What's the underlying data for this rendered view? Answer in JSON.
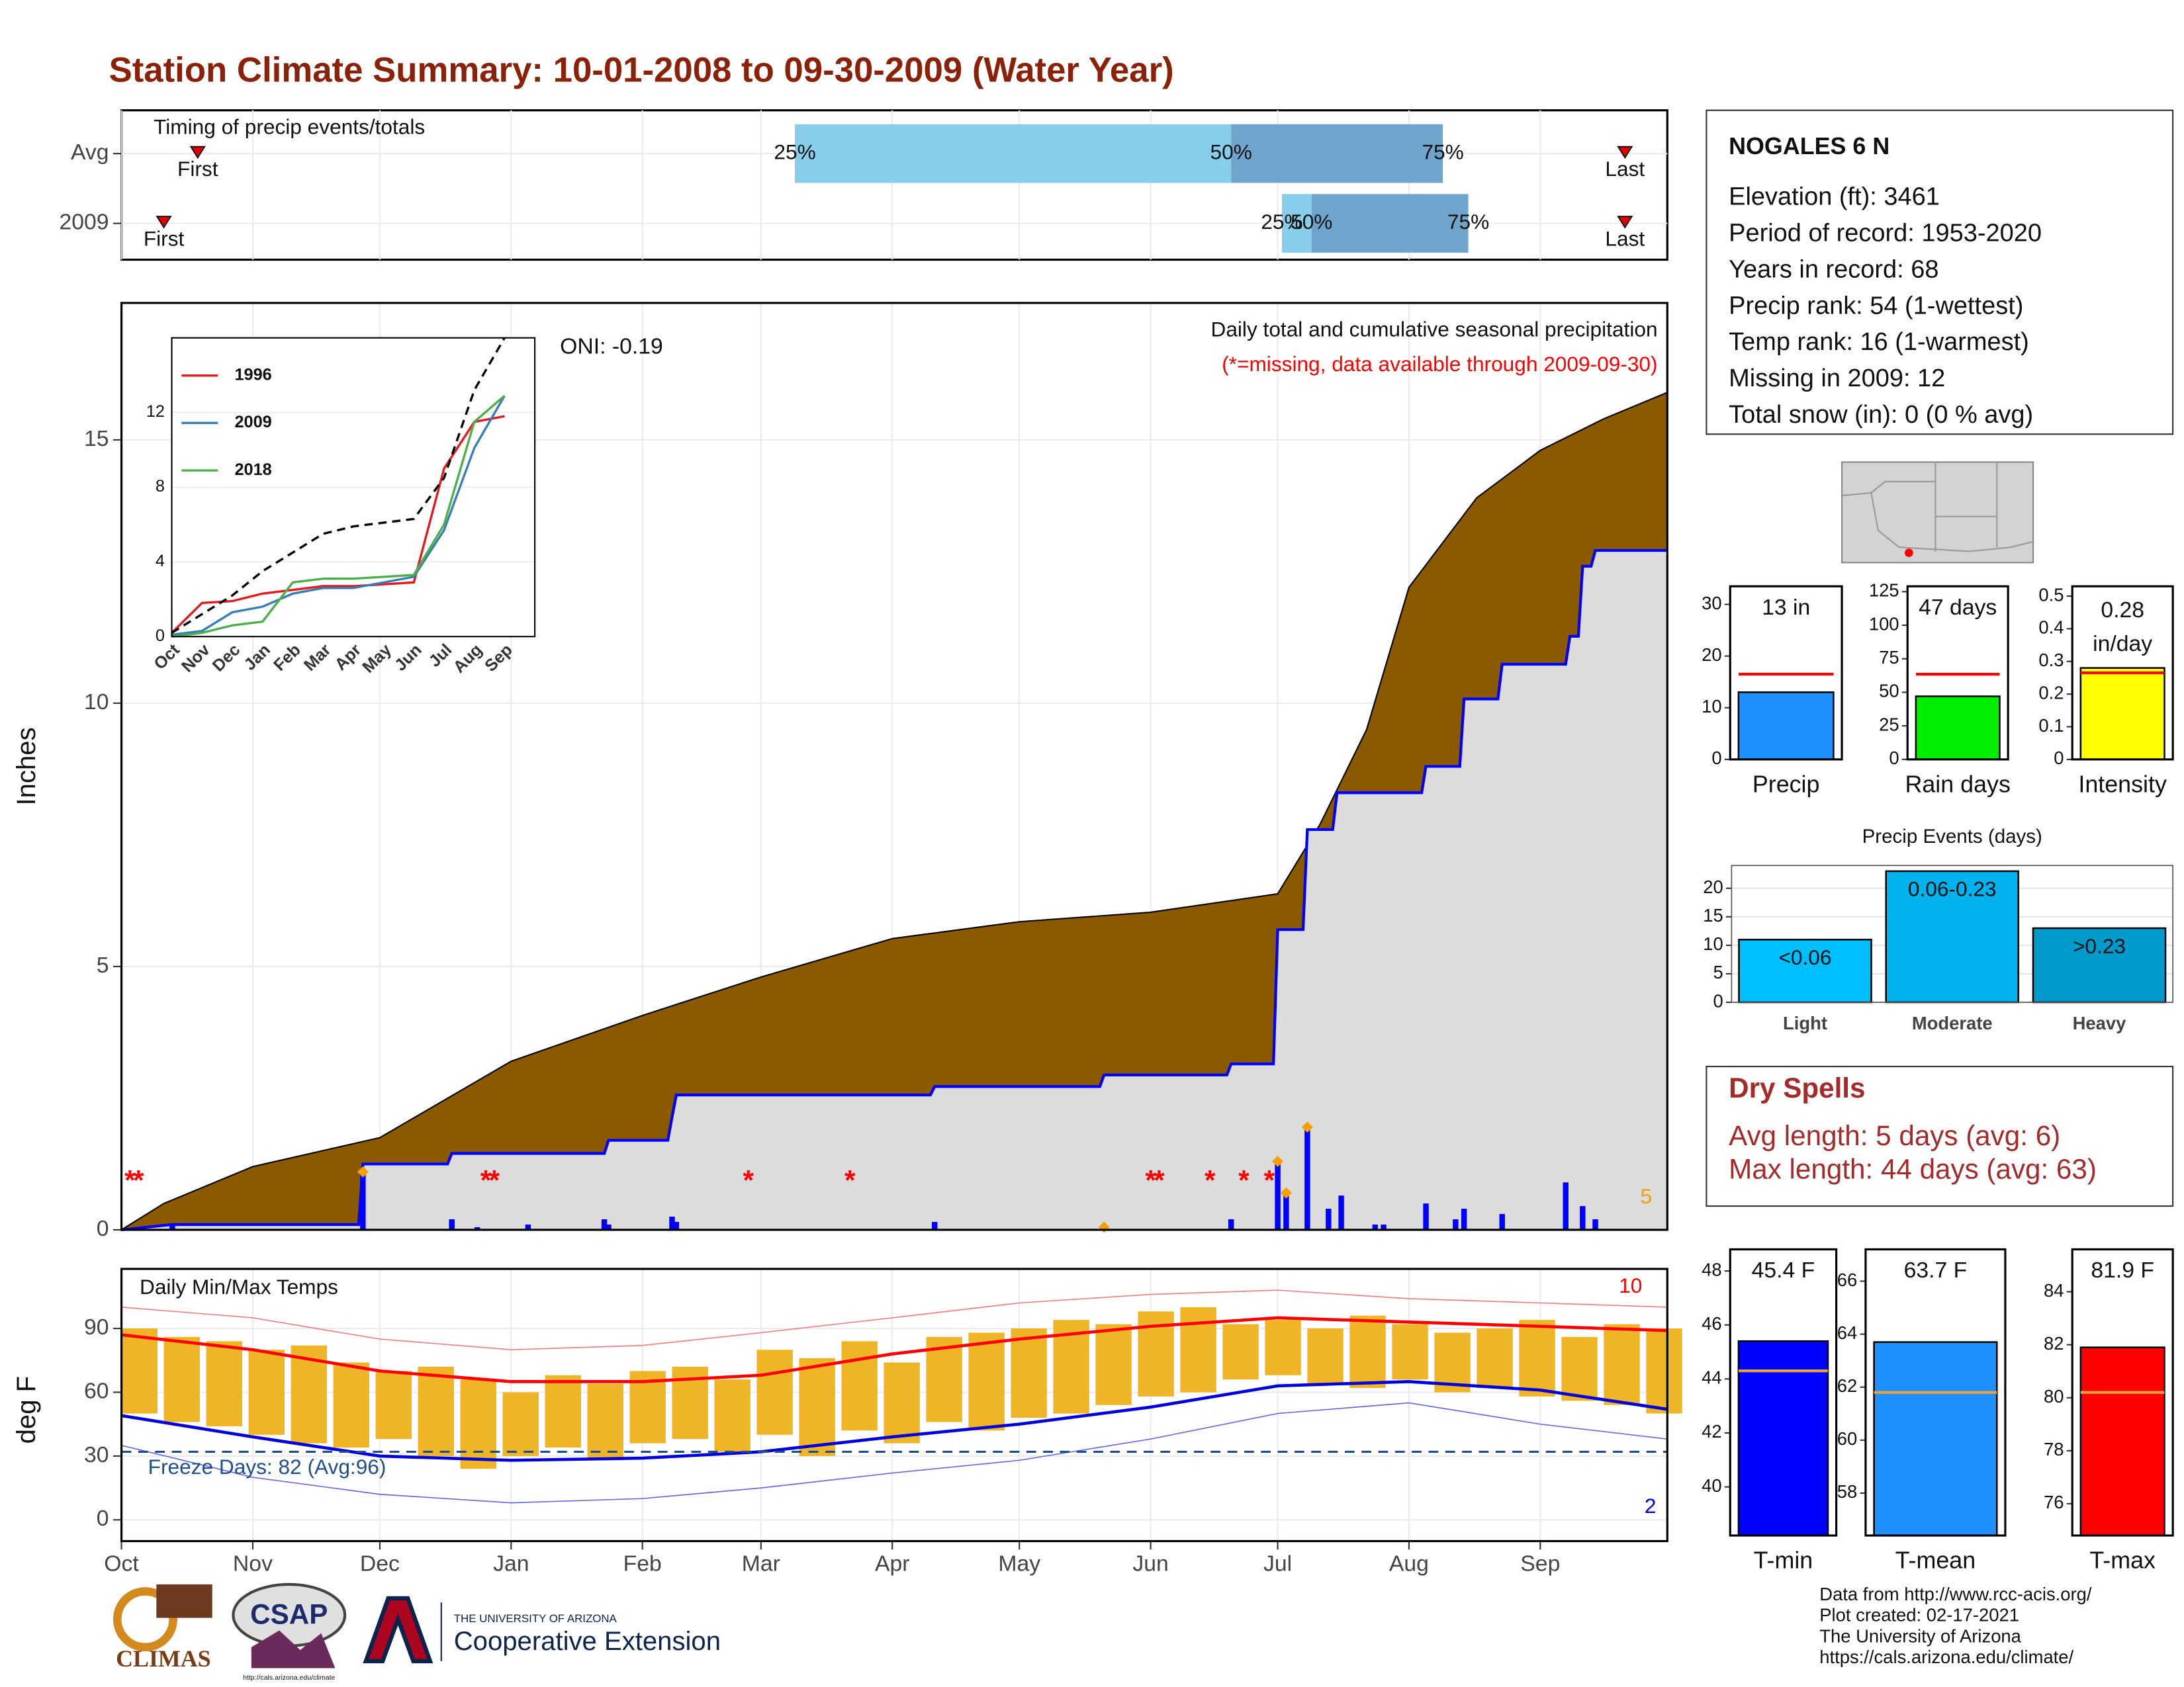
{
  "title": "Station Climate Summary: 10-01-2008 to 09-30-2009 (Water Year)",
  "station": {
    "name": "NOGALES 6 N",
    "lines": [
      "Elevation (ft): 3461",
      "Period of record: 1953-2020",
      "Years in record: 68",
      "Precip rank: 54 (1-wettest)",
      "Temp rank: 16 (1-warmest)",
      "Missing in 2009: 12",
      "Total snow (in): 0 (0 % avg)"
    ]
  },
  "dry_spells": {
    "title": "Dry Spells",
    "lines": [
      "Avg length: 5 days (avg: 6)",
      "Max length: 44 days (avg: 63)"
    ]
  },
  "footer": {
    "lines": [
      "Data from http://www.rcc-acis.org/",
      "Plot created: 02-17-2021",
      "The University of Arizona",
      "https://cals.arizona.edu/climate/"
    ]
  },
  "logos": {
    "climas": "CLIMAS",
    "csap": "CSAP",
    "csap_url": "http://cals.arizona.edu/climate",
    "university": "THE UNIVERSITY OF ARIZONA",
    "extension": "Cooperative Extension"
  },
  "chart_data": [
    {
      "type": "range_bar",
      "title": "Timing of precip events/totals",
      "categories": [
        "Avg",
        "2009"
      ],
      "xlim": [
        0,
        365
      ],
      "q25": [
        159,
        274
      ],
      "q50": [
        262,
        281
      ],
      "q75": [
        312,
        318
      ],
      "first": [
        18,
        10
      ],
      "last": [
        355,
        355
      ],
      "quantile_labels": [
        "25%",
        "50%",
        "75%"
      ],
      "first_label": "First",
      "last_label": "Last",
      "colors": [
        "#87ceeb",
        "#6fa5cc"
      ],
      "marker_color": "#e00000"
    },
    {
      "type": "step_area",
      "title": "Daily total and cumulative seasonal precipitation",
      "subtitle": "(*=missing, data available through 2009-09-30)",
      "annotation": "ONI: -0.19",
      "ylabel": "Inches",
      "xlim": [
        0,
        365
      ],
      "ylim": [
        0,
        17.6
      ],
      "yticks": [
        0,
        5,
        10,
        15
      ],
      "grid": true,
      "average": {
        "x": [
          0,
          10,
          31,
          61,
          92,
          123,
          151,
          182,
          212,
          243,
          273,
          283,
          294,
          304,
          320,
          335,
          350,
          365
        ],
        "values": [
          0,
          0.5,
          1.2,
          1.75,
          3.2,
          4.07,
          4.8,
          5.53,
          5.85,
          6.03,
          6.38,
          7.7,
          9.5,
          12.2,
          13.9,
          14.8,
          15.4,
          15.9
        ]
      },
      "cumulative": {
        "x": [
          0,
          12,
          56,
          57,
          77,
          78,
          114,
          115,
          129,
          130,
          131,
          191,
          192,
          231,
          232,
          261,
          262,
          272,
          273,
          279,
          280,
          286,
          287,
          307,
          308,
          316,
          317,
          325,
          326,
          341,
          342,
          344,
          345,
          347,
          348,
          365
        ],
        "values": [
          0,
          0.1,
          0.1,
          1.25,
          1.25,
          1.45,
          1.45,
          1.7,
          1.7,
          2.14,
          2.56,
          2.56,
          2.72,
          2.72,
          2.94,
          2.94,
          3.15,
          3.15,
          5.7,
          5.7,
          7.6,
          7.6,
          8.3,
          8.3,
          8.8,
          8.8,
          10.08,
          10.08,
          10.74,
          10.74,
          11.27,
          11.27,
          12.6,
          12.6,
          12.9,
          12.9
        ]
      },
      "daily": {
        "x": [
          12,
          57,
          78,
          84,
          96,
          114,
          115,
          130,
          131,
          192,
          232,
          262,
          273,
          275,
          280,
          285,
          288,
          296,
          298,
          308,
          315,
          317,
          326,
          341,
          345,
          348
        ],
        "values": [
          0.1,
          1.1,
          0.2,
          0.05,
          0.1,
          0.2,
          0.1,
          0.25,
          0.15,
          0.15,
          0.05,
          0.2,
          1.3,
          0.7,
          1.95,
          0.4,
          0.65,
          0.1,
          0.1,
          0.5,
          0.2,
          0.4,
          0.3,
          0.9,
          0.45,
          0.2
        ]
      },
      "record_x": [
        57,
        232,
        273,
        275,
        280
      ],
      "record_values": [
        1.1,
        0.05,
        1.3,
        0.7,
        1.95
      ],
      "record_count": 5,
      "missing_marker": "*",
      "missing_x": [
        2,
        4,
        86,
        88,
        148,
        172,
        243,
        245,
        257,
        265,
        271
      ],
      "average_color": "#8b5a00",
      "cumulative_color": "#0000ff",
      "fill_color": "#dcdcdc",
      "record_color": "#f5a000",
      "missing_color": "#ff0000"
    },
    {
      "type": "line",
      "categories": [
        "Oct",
        "Nov",
        "Dec",
        "Jan",
        "Feb",
        "Mar",
        "Apr",
        "May",
        "Jun",
        "Jul",
        "Aug",
        "Sep"
      ],
      "ylim": [
        0,
        16
      ],
      "yticks": [
        0,
        4,
        8,
        12
      ],
      "series": [
        {
          "name": "1996",
          "color": "#e41a1c",
          "values": [
            0.2,
            1.8,
            1.9,
            2.3,
            2.5,
            2.7,
            2.7,
            2.8,
            2.9,
            9.0,
            11.5,
            11.8
          ]
        },
        {
          "name": "2009",
          "color": "#377eb8",
          "values": [
            0.1,
            0.3,
            1.3,
            1.6,
            2.3,
            2.6,
            2.6,
            2.9,
            3.2,
            5.7,
            10.1,
            12.9
          ]
        },
        {
          "name": "2018",
          "color": "#4daf4a",
          "values": [
            0,
            0.2,
            0.6,
            0.8,
            2.9,
            3.1,
            3.1,
            3.2,
            3.3,
            6.0,
            11.5,
            12.9
          ]
        },
        {
          "color": "#000000",
          "dash": true,
          "values": [
            0.2,
            1.2,
            2.2,
            3.5,
            4.5,
            5.5,
            5.9,
            6.1,
            6.3,
            8.5,
            13.2,
            16.0
          ]
        }
      ]
    },
    {
      "type": "range_bar_line",
      "title": "Daily Min/Max Temps",
      "ylabel": "deg F",
      "freeze_label": "Freeze Days: 82 (Avg:96)",
      "high_count": 10,
      "low_count": 2,
      "xlim": [
        0,
        365
      ],
      "ylim": [
        -10,
        118
      ],
      "yticks": [
        0,
        30,
        60,
        90
      ],
      "xticks": [
        {
          "value": 0,
          "label": "Oct"
        },
        {
          "value": 31,
          "label": "Nov"
        },
        {
          "value": 61,
          "label": "Dec"
        },
        {
          "value": 92,
          "label": "Jan"
        },
        {
          "value": 123,
          "label": "Feb"
        },
        {
          "value": 151,
          "label": "Mar"
        },
        {
          "value": 182,
          "label": "Apr"
        },
        {
          "value": 212,
          "label": "May"
        },
        {
          "value": 243,
          "label": "Jun"
        },
        {
          "value": 273,
          "label": "Jul"
        },
        {
          "value": 304,
          "label": "Aug"
        },
        {
          "value": 335,
          "label": "Sep"
        }
      ],
      "x": [
        0,
        10,
        20,
        30,
        40,
        50,
        60,
        70,
        80,
        90,
        100,
        110,
        120,
        130,
        140,
        150,
        160,
        170,
        180,
        190,
        200,
        210,
        220,
        230,
        240,
        250,
        260,
        270,
        280,
        290,
        300,
        310,
        320,
        330,
        340,
        350,
        360
      ],
      "tmax": [
        90,
        86,
        84,
        80,
        82,
        74,
        70,
        72,
        66,
        60,
        68,
        64,
        70,
        72,
        66,
        80,
        76,
        84,
        74,
        86,
        88,
        90,
        94,
        92,
        98,
        100,
        92,
        94,
        90,
        96,
        92,
        88,
        90,
        94,
        86,
        92,
        90
      ],
      "tmin": [
        50,
        46,
        44,
        40,
        36,
        34,
        38,
        30,
        24,
        30,
        34,
        28,
        36,
        38,
        32,
        40,
        30,
        42,
        36,
        46,
        42,
        48,
        50,
        54,
        58,
        60,
        66,
        68,
        64,
        62,
        66,
        60,
        62,
        58,
        56,
        54,
        50
      ],
      "line_x": [
        0,
        31,
        61,
        92,
        123,
        151,
        182,
        212,
        243,
        273,
        304,
        335,
        365
      ],
      "avg_max": [
        87,
        80,
        70,
        65,
        65,
        68,
        78,
        85,
        91,
        95,
        93,
        91,
        89
      ],
      "avg_min": [
        49,
        39,
        30,
        28,
        29,
        32,
        39,
        45,
        53,
        63,
        65,
        61,
        52
      ],
      "record_max": [
        100,
        95,
        85,
        80,
        82,
        88,
        95,
        102,
        106,
        108,
        104,
        102,
        100
      ],
      "record_min": [
        35,
        20,
        12,
        8,
        10,
        15,
        22,
        28,
        38,
        50,
        55,
        45,
        38
      ],
      "freeze": 32,
      "bar_color": "#efb526",
      "max_color": "#ff0000",
      "min_color": "#0000dd",
      "record_max_color": "#f08080",
      "record_min_color": "#6a6ae6",
      "freeze_color": "#1f4e8c"
    },
    {
      "type": "bar",
      "categories": [
        "Precip"
      ],
      "values": [
        13
      ],
      "value_labels": [
        "13 in"
      ],
      "avg": 16.5,
      "ylim": [
        0,
        33.5
      ],
      "yticks": [
        0,
        10,
        20,
        30
      ],
      "color": "#1e90ff",
      "avg_color": "#ff0000"
    },
    {
      "type": "bar",
      "categories": [
        "Rain days"
      ],
      "values": [
        47
      ],
      "value_labels": [
        "47 days"
      ],
      "avg": 63.5,
      "ylim": [
        0,
        129
      ],
      "yticks": [
        0,
        25,
        50,
        75,
        100,
        125
      ],
      "color": "#00ee00",
      "avg_color": "#ff0000"
    },
    {
      "type": "bar",
      "categories": [
        "Intensity"
      ],
      "values": [
        0.28
      ],
      "value_labels": [
        "0.28 in/day"
      ],
      "avg": 0.265,
      "ylim": [
        0,
        0.53
      ],
      "yticks": [
        0.0,
        0.1,
        0.2,
        0.3,
        0.4,
        0.5
      ],
      "color": "#ffff00",
      "avg_color": "#ff0000"
    },
    {
      "type": "bar",
      "title": "Precip Events (days)",
      "categories": [
        "Light",
        "Moderate",
        "Heavy"
      ],
      "values": [
        11,
        23,
        13
      ],
      "bar_labels": [
        "<0.06",
        "0.06-0.23",
        ">0.23"
      ],
      "ylim": [
        0,
        24
      ],
      "yticks": [
        0,
        5,
        10,
        15,
        20
      ],
      "colors": [
        "#00bfff",
        "#00b2ee",
        "#009acd"
      ],
      "grid": true
    },
    {
      "type": "bar",
      "categories": [
        "T-min"
      ],
      "values": [
        45.4
      ],
      "value_labels": [
        "45.4 F"
      ],
      "avg": 44.3,
      "ylim": [
        38.2,
        48.8
      ],
      "yticks": [
        40,
        42,
        44,
        46,
        48
      ],
      "color": "#0000ff",
      "avg_color": "#e6a23c"
    },
    {
      "type": "bar",
      "categories": [
        "T-mean"
      ],
      "values": [
        63.7
      ],
      "value_labels": [
        "63.7 F"
      ],
      "avg": 61.8,
      "ylim": [
        56.4,
        67.2
      ],
      "yticks": [
        58,
        60,
        62,
        64,
        66
      ],
      "color": "#1e90ff",
      "avg_color": "#e6a23c"
    },
    {
      "type": "bar",
      "categories": [
        "T-max"
      ],
      "values": [
        81.9
      ],
      "value_labels": [
        "81.9 F"
      ],
      "avg": 80.2,
      "ylim": [
        74.8,
        85.6
      ],
      "yticks": [
        76,
        78,
        80,
        82,
        84
      ],
      "color": "#ff0000",
      "avg_color": "#e6a23c"
    }
  ]
}
